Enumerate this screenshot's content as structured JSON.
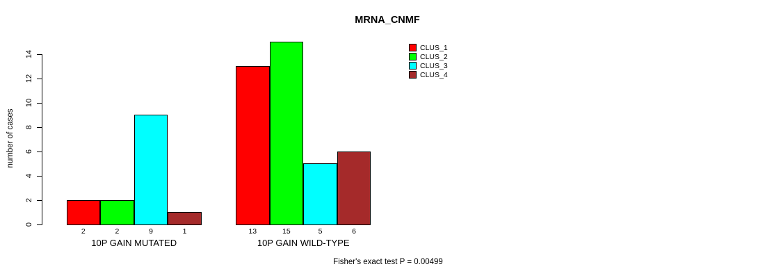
{
  "page": {
    "background_color": "#FFFFFF",
    "text_color": "#000000"
  },
  "chart_data": {
    "type": "bar",
    "title": "MRNA_CNMF",
    "xlabel": "",
    "ylabel": "number of cases",
    "ylim": [
      0,
      14
    ],
    "yticks": [
      0,
      2,
      4,
      6,
      8,
      10,
      12,
      14
    ],
    "grid": false,
    "categories": [
      "10P GAIN MUTATED",
      "10P GAIN WILD-TYPE"
    ],
    "series": [
      {
        "name": "CLUS_1",
        "color": "#FF0000",
        "values": [
          2,
          13
        ]
      },
      {
        "name": "CLUS_2",
        "color": "#00FF00",
        "values": [
          2,
          15
        ]
      },
      {
        "name": "CLUS_3",
        "color": "#00FFFF",
        "values": [
          9,
          5
        ]
      },
      {
        "name": "CLUS_4",
        "color": "#A52A2A",
        "values": [
          1,
          6
        ]
      }
    ],
    "bar_value_labels": [
      [
        2,
        2,
        9,
        1
      ],
      [
        13,
        15,
        5,
        6
      ]
    ],
    "bar_border_color": "#000000",
    "legend": {
      "position": "top-right",
      "entries": [
        "CLUS_1",
        "CLUS_2",
        "CLUS_3",
        "CLUS_4"
      ]
    },
    "annotation": "Fisher's exact test P = 0.00499"
  }
}
